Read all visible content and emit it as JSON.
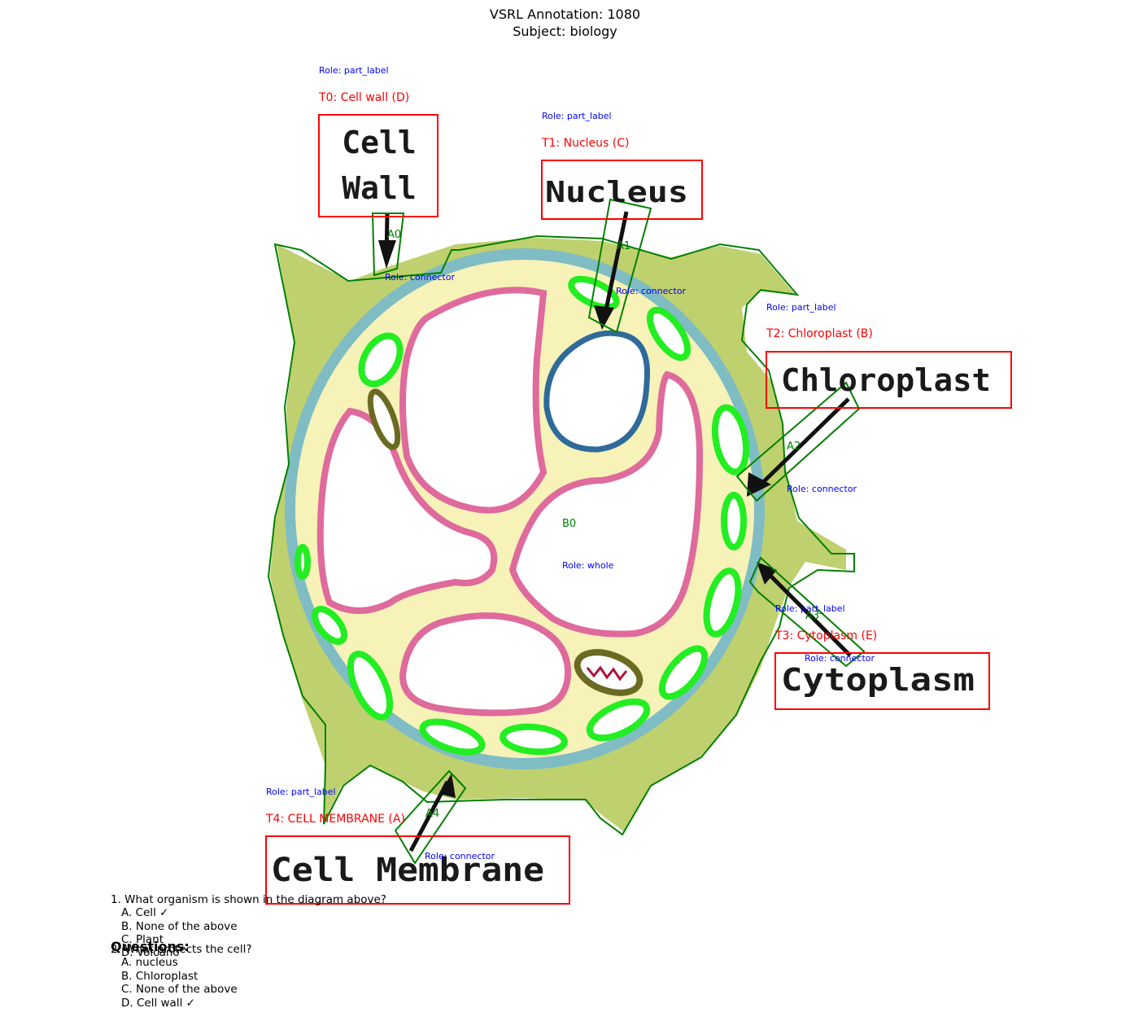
{
  "header": {
    "title_line1": "VSRL Annotation: 1080",
    "title_line2": "Subject: biology"
  },
  "labels": {
    "cell_wall": {
      "role": "Role: part_label",
      "tag": "T0: Cell wall (D)",
      "text1": "Cell",
      "text2": "Wall"
    },
    "nucleus": {
      "role": "Role: part_label",
      "tag": "T1: Nucleus (C)",
      "text": "Nucleus"
    },
    "chloroplast": {
      "role": "Role: part_label",
      "tag": "T2: Chloroplast (B)",
      "text": "Chloroplast"
    },
    "cytoplasm": {
      "role": "Role: part_label",
      "tag": "T3: Cytoplasm (E)",
      "text": "Cytoplasm"
    },
    "membrane": {
      "role": "Role: part_label",
      "tag": "T4: CELL MEMBRANE (A)",
      "text": "Cell Membrane"
    }
  },
  "connectors": {
    "a0": {
      "id": "A0",
      "role": "Role: connector"
    },
    "a1": {
      "id": "A1",
      "role": "Role: connector"
    },
    "a2": {
      "id": "A2",
      "role": "Role: connector"
    },
    "a3": {
      "id": "A3",
      "role": "Role: connector"
    },
    "a4": {
      "id": "A4",
      "role": "Role: connector"
    }
  },
  "whole": {
    "id": "B0",
    "role": "Role: whole"
  },
  "questions": {
    "heading": "Questions:",
    "q1": "1. What organism is shown in the diagram above?",
    "q1_options": [
      "A. Cell ✓",
      "B. None of the above",
      "C. Plant",
      "D. Volcano"
    ],
    "q2": "2. What protects the cell?",
    "q2_options": [
      "A. nucleus",
      "B. Chloroplast",
      "C. None of the above",
      "D. Cell wall ✓"
    ]
  },
  "colors": {
    "annotation_box": "#ff0000",
    "connector_outline": "#008000",
    "role_text": "#0000ff",
    "cell_wall_fill": "#b9cc6c",
    "membrane": "#7fb7c0",
    "cytoplasm": "#f6f2b0",
    "vacuole_outline": "#dd6699",
    "nucleus_outline": "#2f6b9a",
    "chloroplast": "#22ee22",
    "mitochondria": "#666622"
  }
}
